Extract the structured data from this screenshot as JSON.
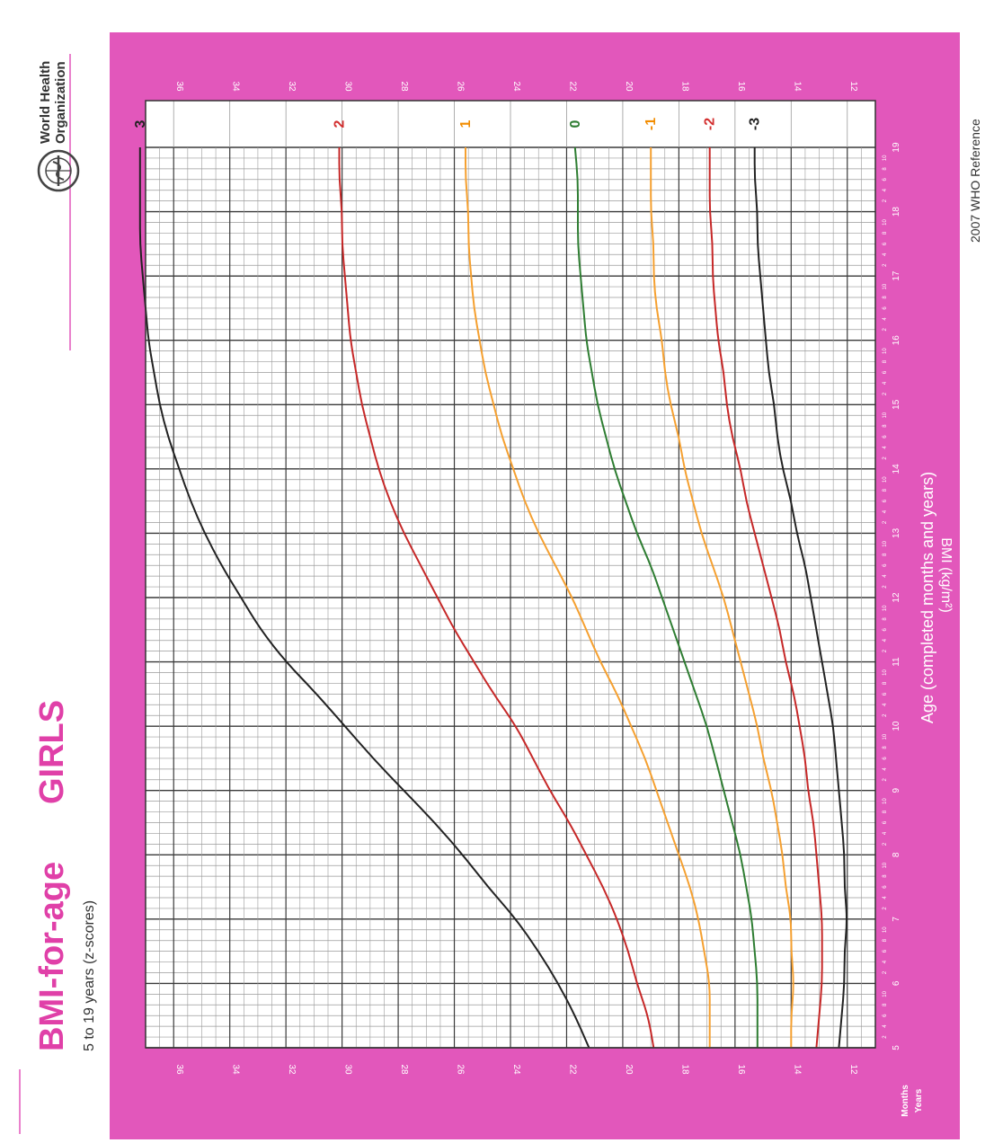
{
  "header": {
    "title_part1": "BMI-for-age",
    "title_part2": "GIRLS",
    "subtitle": "5 to 19 years (z-scores)",
    "org_line1": "World Health",
    "org_line2": "Organization",
    "footer": "2007 WHO Reference"
  },
  "colors": {
    "frame": "#e257bb",
    "title": "#e040a8",
    "grid_minor": "#9a9a9a",
    "grid_major": "#3a3a3a"
  },
  "chart_data": {
    "type": "line",
    "title": "BMI-for-age GIRLS",
    "subtitle": "5 to 19 years (z-scores)",
    "xlabel": "Age (completed months and years)",
    "ylabel": "BMI (kg/m²)",
    "x_row_labels": [
      "Months",
      "Years"
    ],
    "xlim": [
      5,
      19
    ],
    "ylim": [
      11,
      37
    ],
    "x_major_ticks": [
      5,
      6,
      7,
      8,
      9,
      10,
      11,
      12,
      13,
      14,
      15,
      16,
      17,
      18,
      19
    ],
    "x_minor_step_months": 2,
    "x_minor_labels": [
      "2",
      "4",
      "6",
      "8",
      "10"
    ],
    "y_tick_values": [
      12,
      14,
      16,
      18,
      20,
      22,
      24,
      26,
      28,
      30,
      32,
      34,
      36
    ],
    "y_tick_labels": [
      "12",
      "14",
      "16",
      "18",
      "20",
      "22",
      "24",
      "26",
      "28",
      "30",
      "32",
      "34",
      "36"
    ],
    "grid": true,
    "rotated": "chart printed rotated 90° counter-clockwise",
    "x": [
      5,
      5.5,
      6,
      6.5,
      7,
      7.5,
      8,
      8.5,
      9,
      9.5,
      10,
      10.5,
      11,
      11.5,
      12,
      12.5,
      13,
      13.5,
      14,
      14.5,
      15,
      15.5,
      16,
      16.5,
      17,
      17.5,
      18,
      18.5,
      19
    ],
    "series": [
      {
        "name": "3",
        "color": "#222222",
        "label_color": "#222222",
        "values": [
          21.2,
          21.7,
          22.3,
          23.0,
          23.8,
          24.8,
          25.7,
          26.7,
          27.8,
          28.9,
          29.9,
          30.9,
          32.0,
          32.9,
          33.6,
          34.3,
          34.9,
          35.4,
          35.8,
          36.2,
          36.5,
          36.7,
          36.9,
          37.0,
          37.1,
          37.2,
          37.2,
          37.2,
          37.2
        ]
      },
      {
        "name": "2",
        "color": "#c62828",
        "label_color": "#d32f2f",
        "values": [
          18.9,
          19.1,
          19.5,
          19.8,
          20.2,
          20.7,
          21.3,
          21.9,
          22.6,
          23.2,
          23.8,
          24.6,
          25.3,
          26.0,
          26.6,
          27.2,
          27.8,
          28.3,
          28.7,
          29.0,
          29.3,
          29.5,
          29.7,
          29.8,
          29.9,
          30.0,
          30.0,
          30.1,
          30.1
        ]
      },
      {
        "name": "1",
        "color": "#f5a030",
        "label_color": "#f28c00",
        "values": [
          16.9,
          16.9,
          16.9,
          17.1,
          17.3,
          17.6,
          18.0,
          18.4,
          18.8,
          19.2,
          19.7,
          20.2,
          20.8,
          21.3,
          21.8,
          22.4,
          23.0,
          23.5,
          23.9,
          24.3,
          24.6,
          24.9,
          25.1,
          25.3,
          25.4,
          25.5,
          25.5,
          25.6,
          25.6
        ]
      },
      {
        "name": "0",
        "color": "#2e7d32",
        "label_color": "#2e7d32",
        "values": [
          15.2,
          15.2,
          15.2,
          15.3,
          15.4,
          15.6,
          15.8,
          16.1,
          16.4,
          16.7,
          17.0,
          17.4,
          17.8,
          18.2,
          18.6,
          19.0,
          19.5,
          19.9,
          20.3,
          20.6,
          20.9,
          21.1,
          21.3,
          21.4,
          21.5,
          21.6,
          21.6,
          21.6,
          21.7
        ]
      },
      {
        "name": "-1",
        "color": "#f5a030",
        "label_color": "#f28c00",
        "values": [
          14.0,
          14.0,
          13.9,
          14.0,
          14.0,
          14.2,
          14.3,
          14.5,
          14.7,
          15.0,
          15.2,
          15.5,
          15.8,
          16.1,
          16.4,
          16.8,
          17.2,
          17.5,
          17.8,
          18.0,
          18.3,
          18.5,
          18.6,
          18.8,
          18.9,
          18.9,
          19.0,
          19.0,
          19.0
        ]
      },
      {
        "name": "-2",
        "color": "#c62828",
        "label_color": "#d32f2f",
        "values": [
          13.1,
          13.0,
          12.9,
          12.9,
          12.9,
          13.0,
          13.1,
          13.2,
          13.4,
          13.5,
          13.7,
          13.9,
          14.2,
          14.4,
          14.7,
          15.0,
          15.3,
          15.6,
          15.8,
          16.1,
          16.3,
          16.4,
          16.6,
          16.7,
          16.8,
          16.8,
          16.9,
          16.9,
          16.9
        ]
      },
      {
        "name": "-3",
        "color": "#222222",
        "label_color": "#222222",
        "values": [
          12.3,
          12.2,
          12.1,
          12.1,
          12.0,
          12.1,
          12.1,
          12.2,
          12.3,
          12.4,
          12.5,
          12.7,
          12.9,
          13.1,
          13.3,
          13.5,
          13.8,
          14.0,
          14.3,
          14.5,
          14.6,
          14.8,
          14.9,
          15.0,
          15.1,
          15.2,
          15.2,
          15.3,
          15.3
        ]
      }
    ]
  }
}
